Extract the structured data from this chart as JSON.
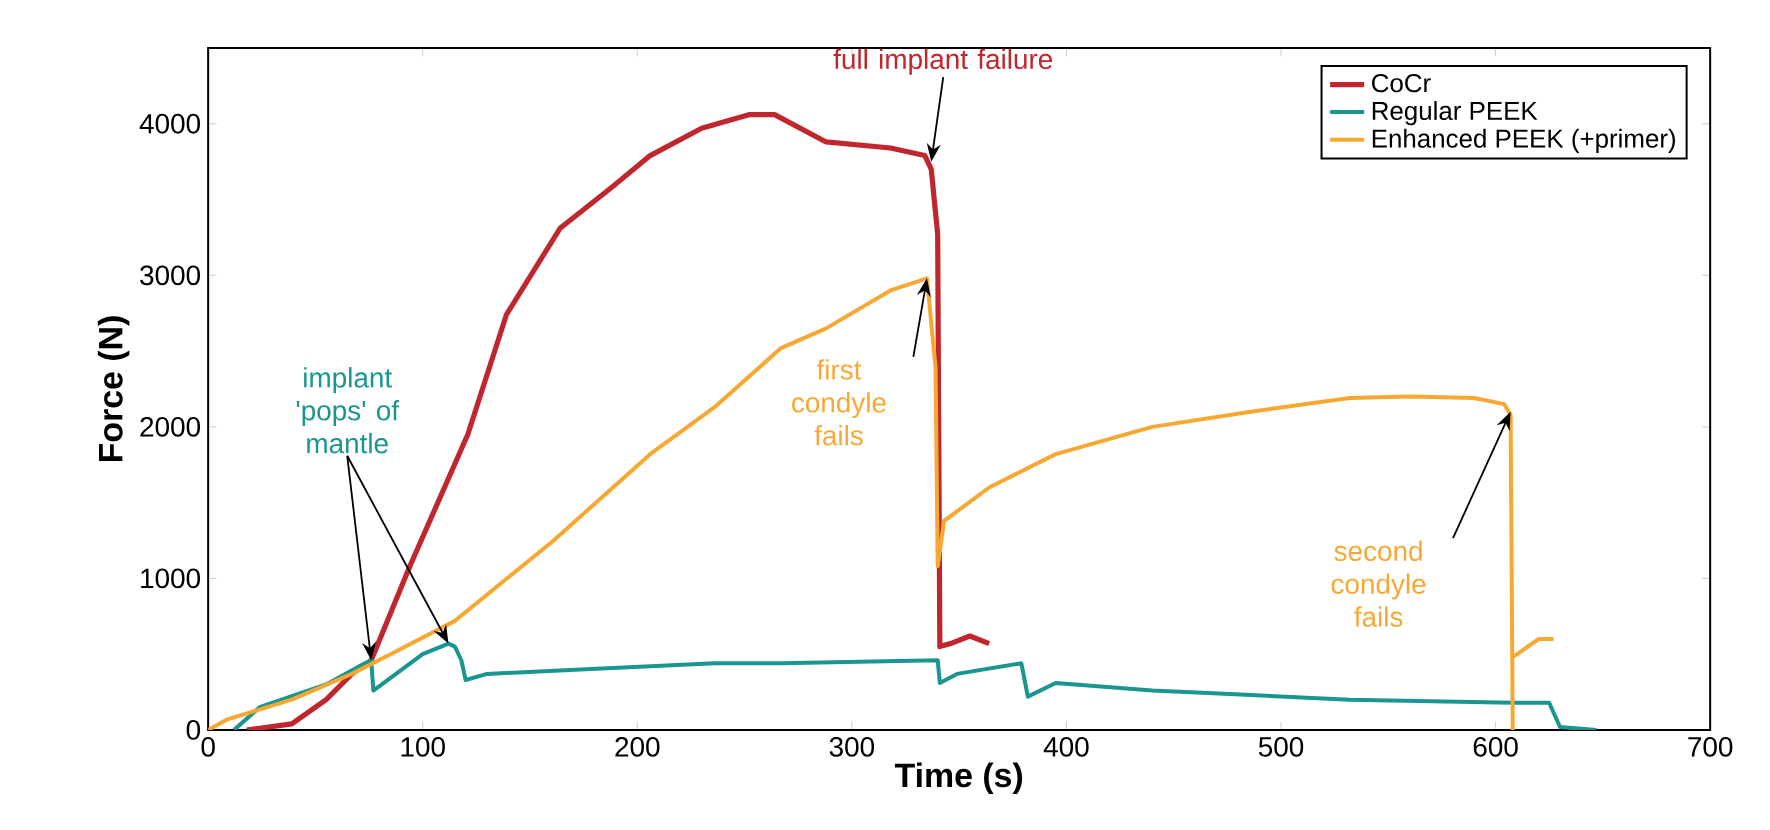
{
  "chart_data": {
    "type": "line",
    "xlabel": "Time (s)",
    "ylabel": "Force (N)",
    "xlim": [
      0,
      700
    ],
    "ylim": [
      0,
      4500
    ],
    "xticks": [
      0,
      100,
      200,
      300,
      400,
      500,
      600,
      700
    ],
    "yticks": [
      0,
      1000,
      2000,
      3000,
      4000
    ],
    "grid": false,
    "legend": "top right",
    "marker": "none",
    "series": [
      {
        "name": "CoCr",
        "color": "#c0262d",
        "x": [
          18,
          39,
          55,
          67,
          76,
          94,
          121,
          139,
          164,
          188,
          206,
          230,
          252,
          264,
          288,
          318,
          334,
          337,
          340,
          341,
          346,
          355,
          364
        ],
        "values": [
          0,
          40,
          200,
          370,
          460,
          1080,
          1950,
          2740,
          3310,
          3580,
          3790,
          3970,
          4060,
          4060,
          3880,
          3840,
          3790,
          3700,
          3270,
          550,
          570,
          620,
          570
        ]
      },
      {
        "name": "Regular PEEK",
        "color": "#1a9590",
        "x": [
          12,
          24,
          55,
          73,
          76,
          77,
          100,
          112,
          115,
          118,
          120,
          130,
          176,
          206,
          236,
          267,
          340,
          341,
          349,
          379,
          382,
          395,
          440,
          471,
          532,
          608,
          625,
          630,
          647
        ],
        "values": [
          0,
          150,
          300,
          440,
          460,
          260,
          500,
          570,
          550,
          460,
          330,
          370,
          400,
          420,
          440,
          440,
          460,
          310,
          370,
          440,
          220,
          310,
          260,
          240,
          200,
          180,
          180,
          20,
          0
        ]
      },
      {
        "name": "Enhanced PEEK (+primer)",
        "color": "#f7a833",
        "x": [
          0,
          9,
          39,
          67,
          85,
          115,
          161,
          206,
          236,
          267,
          288,
          318,
          335,
          339,
          340,
          343,
          364,
          395,
          440,
          486,
          532,
          560,
          590,
          604,
          607,
          608
        ],
        "values": [
          0,
          70,
          200,
          370,
          500,
          720,
          1250,
          1820,
          2130,
          2520,
          2650,
          2900,
          2980,
          2390,
          1080,
          1380,
          1600,
          1820,
          2000,
          2100,
          2190,
          2200,
          2190,
          2150,
          2080,
          0
        ]
      },
      {
        "color": "#f7a833",
        "x": [
          608,
          620,
          627
        ],
        "values": [
          480,
          600,
          600
        ]
      }
    ],
    "annotations": [
      {
        "text": "full implant failure",
        "x": 337,
        "y": 3750
      },
      {
        "text": "implant 'pops' of mantle",
        "x": 76,
        "y": 460
      },
      {
        "text": "first condyle fails",
        "x": 335,
        "y": 2980
      },
      {
        "text": "second condyle fails",
        "x": 607,
        "y": 2100
      }
    ]
  }
}
